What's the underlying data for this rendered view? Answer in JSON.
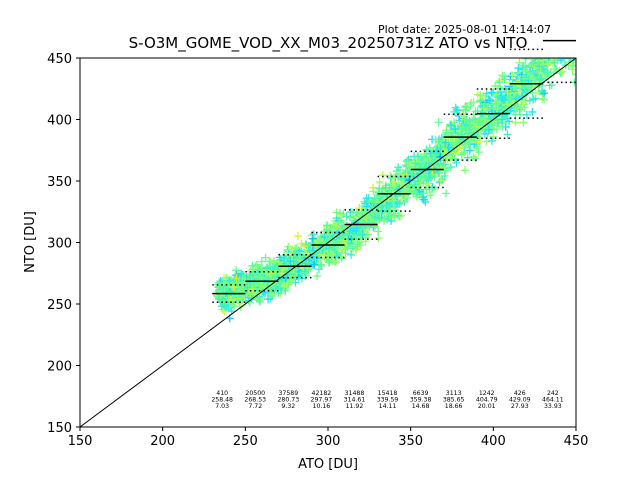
{
  "plot_date": "Plot date: 2025-08-01 14:14:07",
  "chart_data": {
    "type": "scatter",
    "title": "S-O3M_GOME_VOD_XX_M03_20250731Z ATO vs NTO",
    "xlabel": "ATO [DU]",
    "ylabel": "NTO [DU]",
    "xlim": [
      150,
      450
    ],
    "ylim": [
      150,
      450
    ],
    "xticks": [
      "150",
      "200",
      "250",
      "300",
      "350",
      "400",
      "450"
    ],
    "yticks": [
      "150",
      "200",
      "250",
      "300",
      "350",
      "400",
      "450"
    ],
    "grid": false,
    "reference_line": "1:1",
    "bins": [
      {
        "x": 240,
        "count": "410",
        "mean": "258.48",
        "std": "7.03"
      },
      {
        "x": 260,
        "count": "20500",
        "mean": "268.53",
        "std": "7.72"
      },
      {
        "x": 280,
        "count": "37589",
        "mean": "280.73",
        "std": "9.32"
      },
      {
        "x": 300,
        "count": "42182",
        "mean": "297.97",
        "std": "10.16"
      },
      {
        "x": 320,
        "count": "31488",
        "mean": "314.61",
        "std": "11.92"
      },
      {
        "x": 340,
        "count": "15418",
        "mean": "339.59",
        "std": "14.11"
      },
      {
        "x": 360,
        "count": "6639",
        "mean": "359.38",
        "std": "14.68"
      },
      {
        "x": 380,
        "count": "3113",
        "mean": "385.65",
        "std": "18.66"
      },
      {
        "x": 400,
        "count": "1242",
        "mean": "404.79",
        "std": "20.01"
      },
      {
        "x": 420,
        "count": "426",
        "mean": "429.09",
        "std": "27.93"
      },
      {
        "x": 440,
        "count": "242",
        "mean": "464.11",
        "std": "33.93"
      }
    ]
  }
}
